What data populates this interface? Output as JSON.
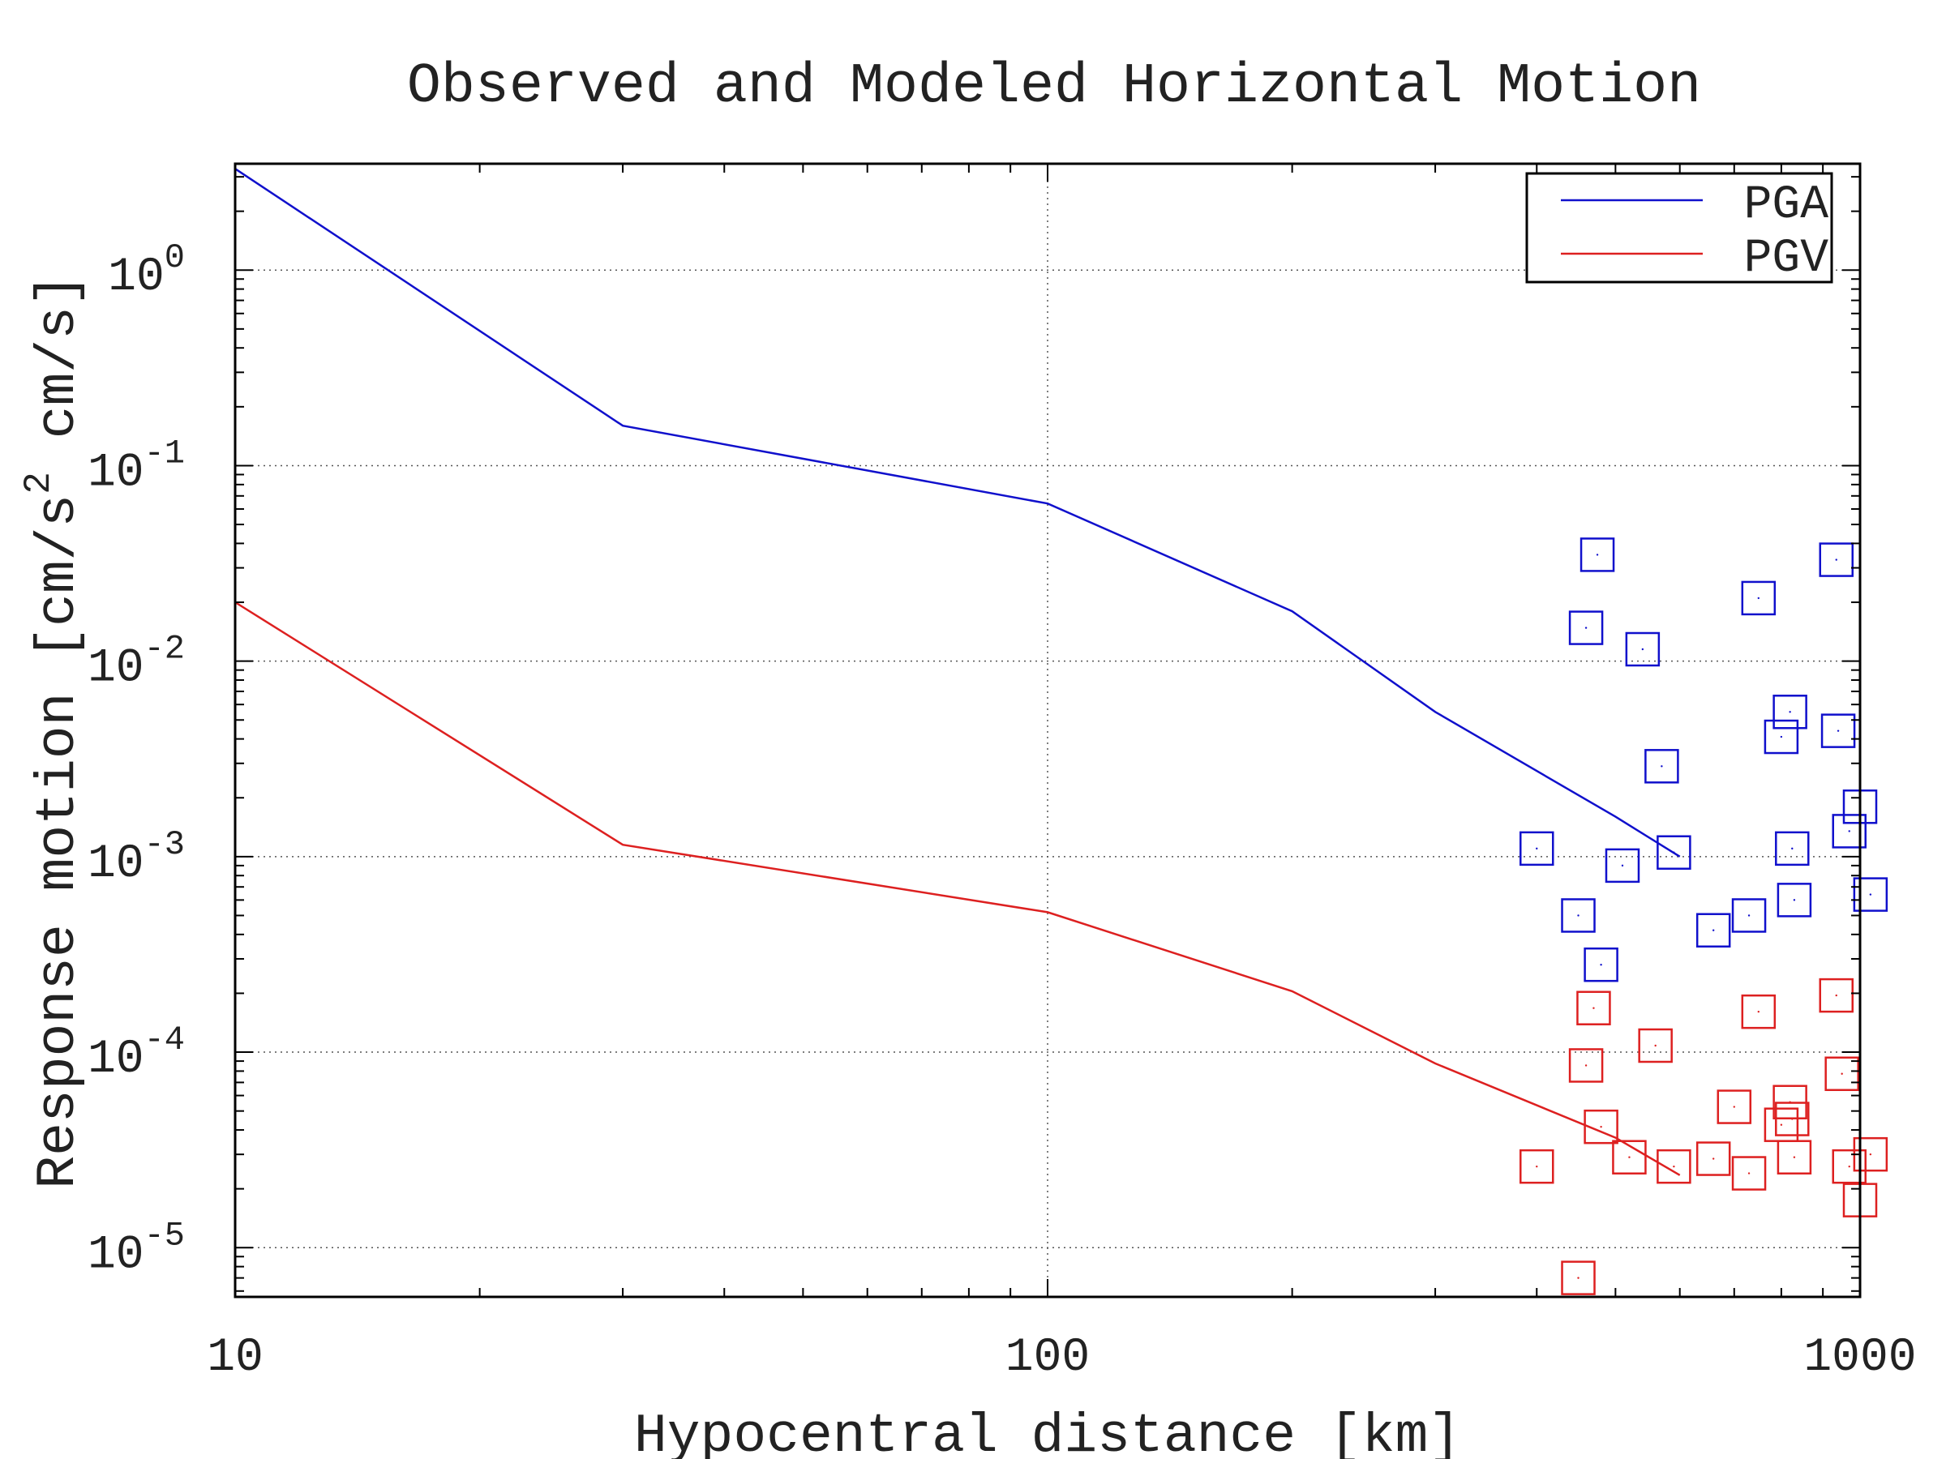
{
  "chart_data": {
    "type": "scatter",
    "title": "Observed and Modeled Horizontal Motion",
    "xlabel": "Hypocentral distance [km]",
    "ylabel": {
      "prefix": "Response motion  [cm/s",
      "superscript": "2",
      "suffix": "  cm/s]"
    },
    "x_scale": "log",
    "y_scale": "log",
    "xlim": [
      10,
      1000
    ],
    "ylim": [
      5.6e-06,
      3.5
    ],
    "grid": true,
    "legend_position": "top-right",
    "x_ticks": [
      {
        "value": 10,
        "label": "10"
      },
      {
        "value": 100,
        "label": "100"
      },
      {
        "value": 1000,
        "label": "1000"
      }
    ],
    "y_ticks": [
      {
        "value": 1,
        "base": "10",
        "exp": "0"
      },
      {
        "value": 0.1,
        "base": "10",
        "exp": "-1"
      },
      {
        "value": 0.01,
        "base": "10",
        "exp": "-2"
      },
      {
        "value": 0.001,
        "base": "10",
        "exp": "-3"
      },
      {
        "value": 0.0001,
        "base": "10",
        "exp": "-4"
      },
      {
        "value": 1e-05,
        "base": "10",
        "exp": "-5"
      }
    ],
    "series": [
      {
        "name": "PGA",
        "kind": "line",
        "color": "#1010cc",
        "x": [
          10,
          30,
          100,
          200,
          300,
          500,
          600
        ],
        "y": [
          3.3,
          0.16,
          0.064,
          0.018,
          0.0055,
          0.0016,
          0.001
        ]
      },
      {
        "name": "PGV",
        "kind": "line",
        "color": "#dd2020",
        "x": [
          10,
          30,
          100,
          200,
          300,
          500,
          600
        ],
        "y": [
          0.02,
          0.00115,
          0.00052,
          0.000205,
          8.75e-05,
          3.65e-05,
          2.35e-05
        ]
      },
      {
        "kind": "markers",
        "color": "#1010cc",
        "x": [
          400,
          450,
          460,
          475,
          480,
          510,
          540,
          570,
          590,
          660,
          730,
          750,
          800,
          820,
          825,
          830,
          935,
          940,
          970,
          1000,
          1030
        ],
        "y": [
          0.0011,
          0.0005,
          0.0148,
          0.035,
          0.00028,
          0.0009,
          0.0115,
          0.0029,
          0.00105,
          0.00042,
          0.0005,
          0.021,
          0.0041,
          0.0055,
          0.0011,
          0.0006,
          0.033,
          0.0044,
          0.00135,
          0.0018,
          0.00064
        ]
      },
      {
        "kind": "markers",
        "color": "#dd2020",
        "x": [
          400,
          450,
          460,
          470,
          480,
          520,
          560,
          590,
          660,
          700,
          730,
          750,
          800,
          820,
          825,
          830,
          935,
          950,
          970,
          1000,
          1030
        ],
        "y": [
          2.6e-05,
          7e-06,
          8.55e-05,
          0.000168,
          4.15e-05,
          2.9e-05,
          0.000108,
          2.6e-05,
          2.85e-05,
          5.25e-05,
          2.4e-05,
          0.000161,
          4.25e-05,
          5.55e-05,
          4.55e-05,
          2.9e-05,
          0.000195,
          7.75e-05,
          2.6e-05,
          1.75e-05,
          3e-05
        ]
      }
    ]
  }
}
